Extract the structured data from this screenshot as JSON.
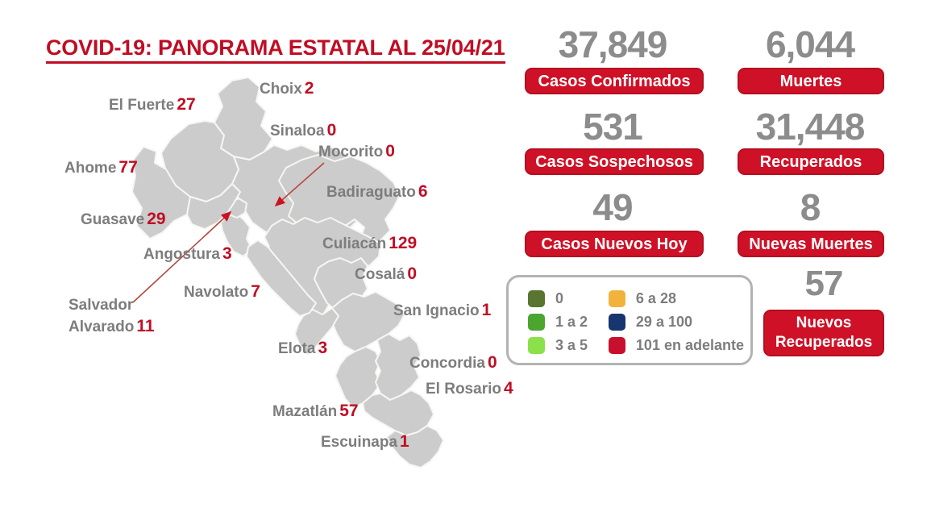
{
  "title": "COVID-19: PANORAMA ESTATAL AL 25/04/21",
  "colors": {
    "title_red": "#c00d24",
    "box_red": "#ce1126",
    "box_border_red": "#b50e20",
    "number_gray": "#8c8c8c",
    "label_gray": "#7d7d7d",
    "value_red": "#c00d24",
    "legend_border_gray": "#b3b3b3",
    "leader_line": "#b5493a",
    "arrow_red": "#cc1122",
    "palette": {
      "cat_0": "#587630",
      "cat_1_2": "#4ca52f",
      "cat_3_5": "#8ce04a",
      "cat_6_28": "#f2b33d",
      "cat_29_100": "#17356e",
      "cat_101_plus": "#c8102e"
    }
  },
  "stats": [
    {
      "id": "casos-confirmados",
      "value": "37,849",
      "label": "Casos Confirmados"
    },
    {
      "id": "muertes",
      "value": "6,044",
      "label": "Muertes"
    },
    {
      "id": "casos-sospechosos",
      "value": "531",
      "label": "Casos Sospechosos"
    },
    {
      "id": "recuperados",
      "value": "31,448",
      "label": "Recuperados"
    },
    {
      "id": "casos-nuevos-hoy",
      "value": "49",
      "label": "Casos Nuevos Hoy"
    },
    {
      "id": "nuevas-muertes",
      "value": "8",
      "label": "Nuevas Muertes"
    },
    {
      "id": "nuevos-recuperados",
      "value": "57",
      "label": "Nuevos Recuperados",
      "label_lines": [
        "Nuevos",
        "Recuperados"
      ]
    }
  ],
  "legend": {
    "items": [
      {
        "label": "0",
        "color_key": "cat_0"
      },
      {
        "label": "1 a 2",
        "color_key": "cat_1_2"
      },
      {
        "label": "3 a 5",
        "color_key": "cat_3_5"
      },
      {
        "label": "6 a 28",
        "color_key": "cat_6_28"
      },
      {
        "label": "29 a 100",
        "color_key": "cat_29_100"
      },
      {
        "label": "101 en adelante",
        "color_key": "cat_101_plus"
      }
    ]
  },
  "map": {
    "state": "Sinaloa",
    "municipalities": [
      {
        "id": "choix",
        "name": "Choix",
        "value": "2",
        "category": "cat_1_2"
      },
      {
        "id": "el-fuerte",
        "name": "El Fuerte",
        "value": "27",
        "category": "cat_6_28"
      },
      {
        "id": "sinaloa",
        "name": "Sinaloa",
        "value": "0",
        "category": "cat_0"
      },
      {
        "id": "mocorito",
        "name": "Mocorito",
        "value": "0",
        "category": "cat_0"
      },
      {
        "id": "ahome",
        "name": "Ahome",
        "value": "77",
        "category": "cat_29_100"
      },
      {
        "id": "badiraguato",
        "name": "Badiraguato",
        "value": "6",
        "category": "cat_6_28"
      },
      {
        "id": "guasave",
        "name": "Guasave",
        "value": "29",
        "category": "cat_29_100"
      },
      {
        "id": "culiacan",
        "name": "Culiacán",
        "value": "129",
        "category": "cat_101_plus"
      },
      {
        "id": "angostura",
        "name": "Angostura",
        "value": "3",
        "category": "cat_3_5"
      },
      {
        "id": "cosala",
        "name": "Cosalá",
        "value": "0",
        "category": "cat_0"
      },
      {
        "id": "navolato",
        "name": "Navolato",
        "value": "7",
        "category": "cat_6_28"
      },
      {
        "id": "salvador-alvarado",
        "name": "Salvador Alvarado",
        "name_lines": [
          "Salvador",
          "Alvarado"
        ],
        "value": "11",
        "category": "cat_6_28"
      },
      {
        "id": "san-ignacio",
        "name": "San Ignacio",
        "value": "1",
        "category": "cat_1_2"
      },
      {
        "id": "elota",
        "name": "Elota",
        "value": "3",
        "category": "cat_3_5"
      },
      {
        "id": "concordia",
        "name": "Concordia",
        "value": "0",
        "category": "cat_0"
      },
      {
        "id": "el-rosario",
        "name": "El Rosario",
        "value": "4",
        "category": "cat_3_5"
      },
      {
        "id": "mazatlan",
        "name": "Mazatlán",
        "value": "57",
        "category": "cat_29_100"
      },
      {
        "id": "escuinapa",
        "name": "Escuinapa",
        "value": "1",
        "category": "cat_1_2"
      }
    ]
  }
}
